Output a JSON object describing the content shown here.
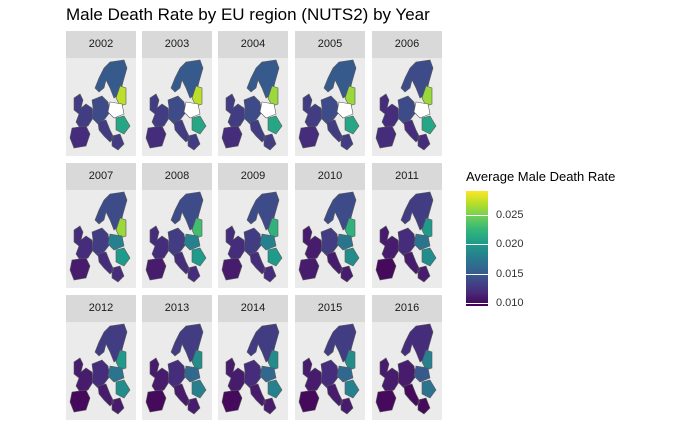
{
  "chart_data": {
    "type": "heatmap",
    "title": "Male Death Rate by EU region (NUTS2) by Year",
    "facets": [
      "2002",
      "2003",
      "2004",
      "2005",
      "2006",
      "2007",
      "2008",
      "2009",
      "2010",
      "2011",
      "2012",
      "2013",
      "2014",
      "2015",
      "2016"
    ],
    "legend": {
      "title": "Average Male Death Rate",
      "ticks": [
        0.01,
        0.015,
        0.02,
        0.025
      ],
      "tick_labels": [
        "0.010",
        "0.015",
        "0.020",
        "0.025"
      ],
      "range": [
        0.0095,
        0.029
      ],
      "palette": [
        "#440154",
        "#482878",
        "#3e4a89",
        "#31688e",
        "#26828e",
        "#1f9e89",
        "#35b779",
        "#6ece58",
        "#b5de2b",
        "#fde725"
      ],
      "position": "right"
    },
    "regions": [
      "north",
      "west",
      "central",
      "east-upper",
      "east-lower",
      "south",
      "iberia"
    ],
    "region_values_by_year": {
      "2002": [
        0.015,
        0.013,
        0.014,
        0.027,
        0.021,
        0.013,
        0.012
      ],
      "2003": [
        0.015,
        0.013,
        0.014,
        0.027,
        0.021,
        0.013,
        0.012
      ],
      "2004": [
        0.015,
        0.013,
        0.014,
        0.026,
        0.021,
        0.013,
        0.012
      ],
      "2005": [
        0.015,
        0.013,
        0.014,
        0.026,
        0.021,
        0.013,
        0.012
      ],
      "2006": [
        0.014,
        0.012,
        0.014,
        0.026,
        0.021,
        0.012,
        0.012
      ],
      "2007": [
        0.014,
        0.012,
        0.013,
        0.026,
        0.02,
        0.012,
        0.011
      ],
      "2008": [
        0.014,
        0.012,
        0.013,
        0.023,
        0.02,
        0.012,
        0.011
      ],
      "2009": [
        0.014,
        0.012,
        0.013,
        0.022,
        0.02,
        0.012,
        0.011
      ],
      "2010": [
        0.014,
        0.011,
        0.013,
        0.022,
        0.019,
        0.011,
        0.011
      ],
      "2011": [
        0.013,
        0.011,
        0.012,
        0.02,
        0.019,
        0.011,
        0.01
      ],
      "2012": [
        0.013,
        0.011,
        0.012,
        0.02,
        0.019,
        0.011,
        0.01
      ],
      "2013": [
        0.013,
        0.011,
        0.012,
        0.019,
        0.018,
        0.011,
        0.01
      ],
      "2014": [
        0.013,
        0.011,
        0.012,
        0.019,
        0.018,
        0.011,
        0.01
      ],
      "2015": [
        0.013,
        0.011,
        0.012,
        0.019,
        0.018,
        0.011,
        0.01
      ],
      "2016": [
        0.012,
        0.011,
        0.011,
        0.018,
        0.017,
        0.01,
        0.01
      ]
    },
    "missing_regions_by_year": {
      "2002": [
        "east-mid"
      ],
      "2003": [
        "east-mid"
      ],
      "2004": [
        "east-mid"
      ],
      "2005": [
        "east-mid"
      ],
      "2006": [
        "east-mid"
      ]
    }
  }
}
